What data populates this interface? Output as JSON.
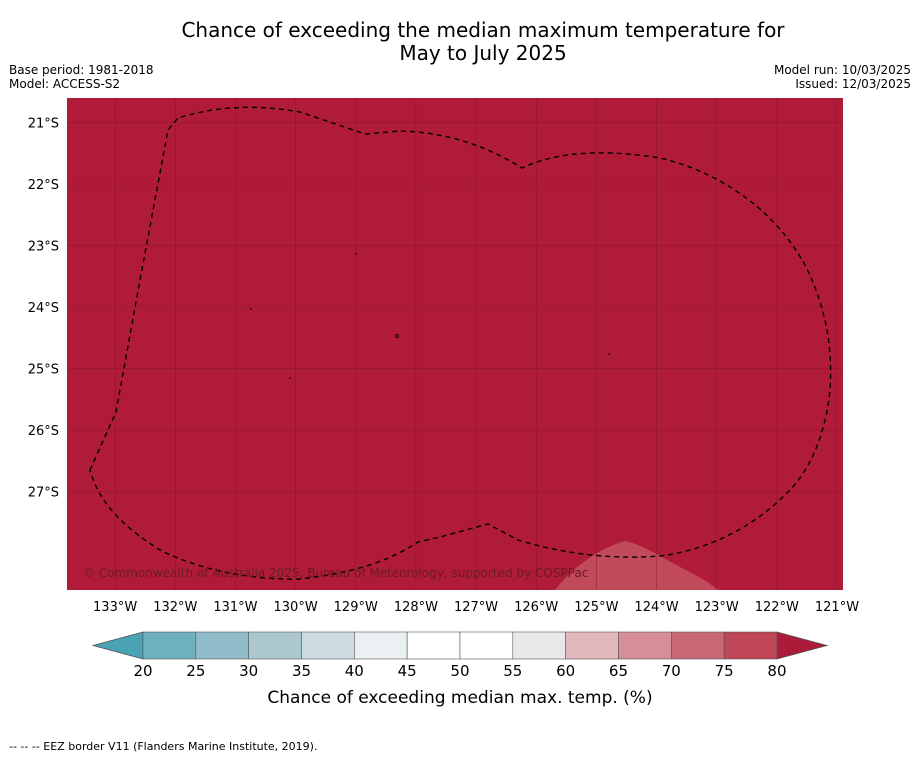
{
  "header": {
    "title_line1": "Chance of exceeding the median maximum temperature for",
    "title_line2": "May to July 2025",
    "base_period": "Base period: 1981-2018",
    "model": "Model: ACCESS-S2",
    "model_run": "Model run: 10/03/2025",
    "issued": "Issued: 12/03/2025"
  },
  "map": {
    "copyright": "© Commonwealth of Australia 2025, Bureau of Meteorology, supported by COSPPac",
    "fill_color": "#b01c38",
    "lat_labels": [
      "21°S",
      "22°S",
      "23°S",
      "24°S",
      "25°S",
      "26°S",
      "27°S"
    ],
    "lat_values": [
      -21,
      -22,
      -23,
      -24,
      -25,
      -26,
      -27
    ],
    "lon_labels": [
      "133°W",
      "132°W",
      "131°W",
      "130°W",
      "129°W",
      "128°W",
      "127°W",
      "126°W",
      "125°W",
      "124°W",
      "123°W",
      "122°W",
      "121°W"
    ],
    "lon_values": [
      -133,
      -132,
      -131,
      -130,
      -129,
      -128,
      -127,
      -126,
      -125,
      -124,
      -123,
      -122,
      -121
    ],
    "lon_range": [
      -133.8,
      -120.9
    ],
    "lat_range": [
      -28.6,
      -20.6
    ]
  },
  "colorbar": {
    "label": "Chance of exceeding median max. temp. (%)",
    "ticks": [
      "20",
      "25",
      "30",
      "35",
      "40",
      "45",
      "50",
      "55",
      "60",
      "65",
      "70",
      "75",
      "80"
    ],
    "colors": [
      "#4aa3b5",
      "#6fb0bf",
      "#8fbcc8",
      "#abc8ce",
      "#cddcdf",
      "#ebf1f3",
      "#ffffff",
      "#ffffff",
      "#e8e8e8",
      "#e2b8bf",
      "#d68e98",
      "#c96874",
      "#bf4656",
      "#ad1b3b"
    ]
  },
  "footnote": "--  --  -- EEZ border V11 (Flanders Marine Institute, 2019)."
}
